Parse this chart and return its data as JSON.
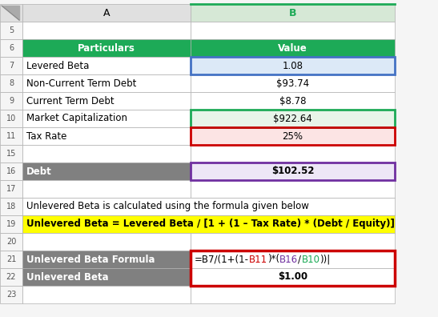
{
  "rows_display": [
    5,
    6,
    7,
    8,
    9,
    10,
    11,
    15,
    16,
    17,
    18,
    19,
    20,
    21,
    22,
    23
  ],
  "row_data": {
    "5": {
      "A": "",
      "B": "",
      "A_bg": "#ffffff",
      "B_bg": "#ffffff",
      "A_bold": false,
      "B_bold": false,
      "A_color": "#000000",
      "B_color": "#000000",
      "A_align": "left",
      "B_align": "center",
      "span": false,
      "formula": false
    },
    "6": {
      "A": "Particulars",
      "B": "Value",
      "A_bg": "#1daa57",
      "B_bg": "#1daa57",
      "A_bold": true,
      "B_bold": true,
      "A_color": "#ffffff",
      "B_color": "#ffffff",
      "A_align": "center",
      "B_align": "center",
      "span": false,
      "formula": false
    },
    "7": {
      "A": "Levered Beta",
      "B": "1.08",
      "A_bg": "#ffffff",
      "B_bg": "#dce9f7",
      "A_bold": false,
      "B_bold": false,
      "A_color": "#000000",
      "B_color": "#000000",
      "A_align": "left",
      "B_align": "center",
      "span": false,
      "formula": false
    },
    "8": {
      "A": "Non-Current Term Debt",
      "B": "$93.74",
      "A_bg": "#ffffff",
      "B_bg": "#ffffff",
      "A_bold": false,
      "B_bold": false,
      "A_color": "#000000",
      "B_color": "#000000",
      "A_align": "left",
      "B_align": "center",
      "span": false,
      "formula": false
    },
    "9": {
      "A": "Current Term Debt",
      "B": "$8.78",
      "A_bg": "#ffffff",
      "B_bg": "#ffffff",
      "A_bold": false,
      "B_bold": false,
      "A_color": "#000000",
      "B_color": "#000000",
      "A_align": "left",
      "B_align": "center",
      "span": false,
      "formula": false
    },
    "10": {
      "A": "Market Capitalization",
      "B": "$922.64",
      "A_bg": "#ffffff",
      "B_bg": "#e8f5e9",
      "A_bold": false,
      "B_bold": false,
      "A_color": "#000000",
      "B_color": "#000000",
      "A_align": "left",
      "B_align": "center",
      "span": false,
      "formula": false
    },
    "11": {
      "A": "Tax Rate",
      "B": "25%",
      "A_bg": "#ffffff",
      "B_bg": "#fce4e4",
      "A_bold": false,
      "B_bold": false,
      "A_color": "#000000",
      "B_color": "#000000",
      "A_align": "left",
      "B_align": "center",
      "span": false,
      "formula": false
    },
    "15": {
      "A": "",
      "B": "",
      "A_bg": "#ffffff",
      "B_bg": "#ffffff",
      "A_bold": false,
      "B_bold": false,
      "A_color": "#000000",
      "B_color": "#000000",
      "A_align": "left",
      "B_align": "center",
      "span": false,
      "formula": false
    },
    "16": {
      "A": "Debt",
      "B": "$102.52",
      "A_bg": "#808080",
      "B_bg": "#ede7f6",
      "A_bold": true,
      "B_bold": true,
      "A_color": "#ffffff",
      "B_color": "#000000",
      "A_align": "left",
      "B_align": "center",
      "span": false,
      "formula": false
    },
    "17": {
      "A": "",
      "B": "",
      "A_bg": "#ffffff",
      "B_bg": "#ffffff",
      "A_bold": false,
      "B_bold": false,
      "A_color": "#000000",
      "B_color": "#000000",
      "A_align": "left",
      "B_align": "center",
      "span": false,
      "formula": false
    },
    "18": {
      "A": "Unlevered Beta is calculated using the formula given below",
      "B": "",
      "A_bg": "#ffffff",
      "B_bg": "#ffffff",
      "A_bold": false,
      "B_bold": false,
      "A_color": "#000000",
      "B_color": "#000000",
      "A_align": "left",
      "B_align": "center",
      "span": true,
      "formula": false
    },
    "19": {
      "A": "Unlevered Beta = Levered Beta / [1 + (1 – Tax Rate) * (Debt / Equity)]",
      "B": "",
      "A_bg": "#ffff00",
      "B_bg": "#ffff00",
      "A_bold": true,
      "B_bold": false,
      "A_color": "#000000",
      "B_color": "#000000",
      "A_align": "left",
      "B_align": "center",
      "span": true,
      "formula": false
    },
    "20": {
      "A": "",
      "B": "",
      "A_bg": "#ffffff",
      "B_bg": "#ffffff",
      "A_bold": false,
      "B_bold": false,
      "A_color": "#000000",
      "B_color": "#000000",
      "A_align": "left",
      "B_align": "center",
      "span": false,
      "formula": false
    },
    "21": {
      "A": "Unlevered Beta Formula",
      "B": "",
      "A_bg": "#808080",
      "B_bg": "#ffffff",
      "A_bold": true,
      "B_bold": false,
      "A_color": "#ffffff",
      "B_color": "#000000",
      "A_align": "left",
      "B_align": "left",
      "span": false,
      "formula": true
    },
    "22": {
      "A": "Unlevered Beta",
      "B": "$1.00",
      "A_bg": "#808080",
      "B_bg": "#ffffff",
      "A_bold": true,
      "B_bold": true,
      "A_color": "#ffffff",
      "B_color": "#000000",
      "A_align": "left",
      "B_align": "center",
      "span": false,
      "formula": false
    },
    "23": {
      "A": "",
      "B": "",
      "A_bg": "#ffffff",
      "B_bg": "#ffffff",
      "A_bold": false,
      "B_bold": false,
      "A_color": "#000000",
      "B_color": "#000000",
      "A_align": "left",
      "B_align": "center",
      "span": false,
      "formula": false
    }
  },
  "formula_parts": [
    {
      "text": "=B7/(1+(1-",
      "color": "#000000"
    },
    {
      "text": "B11",
      "color": "#cc0000"
    },
    {
      "text": ")*(",
      "color": "#000000"
    },
    {
      "text": "B16",
      "color": "#7030a0"
    },
    {
      "text": "/",
      "color": "#000000"
    },
    {
      "text": "B10",
      "color": "#1aaa55"
    },
    {
      "text": "))|",
      "color": "#000000"
    }
  ],
  "col_header_bg": "#e0e0e0",
  "col_B_header_bg": "#d6e8d6",
  "col_header_color": "#000000",
  "col_B_header_color": "#1daa57",
  "row_num_bg": "#f5f5f5",
  "row_num_color": "#555555",
  "grid_color": "#b0b0b0",
  "fig_bg": "#f5f5f5",
  "border_blue": "#4472c4",
  "border_green": "#1daa57",
  "border_red": "#cc0000",
  "border_purple": "#7030a0",
  "fontsize": 8.5,
  "header_fontsize": 9
}
